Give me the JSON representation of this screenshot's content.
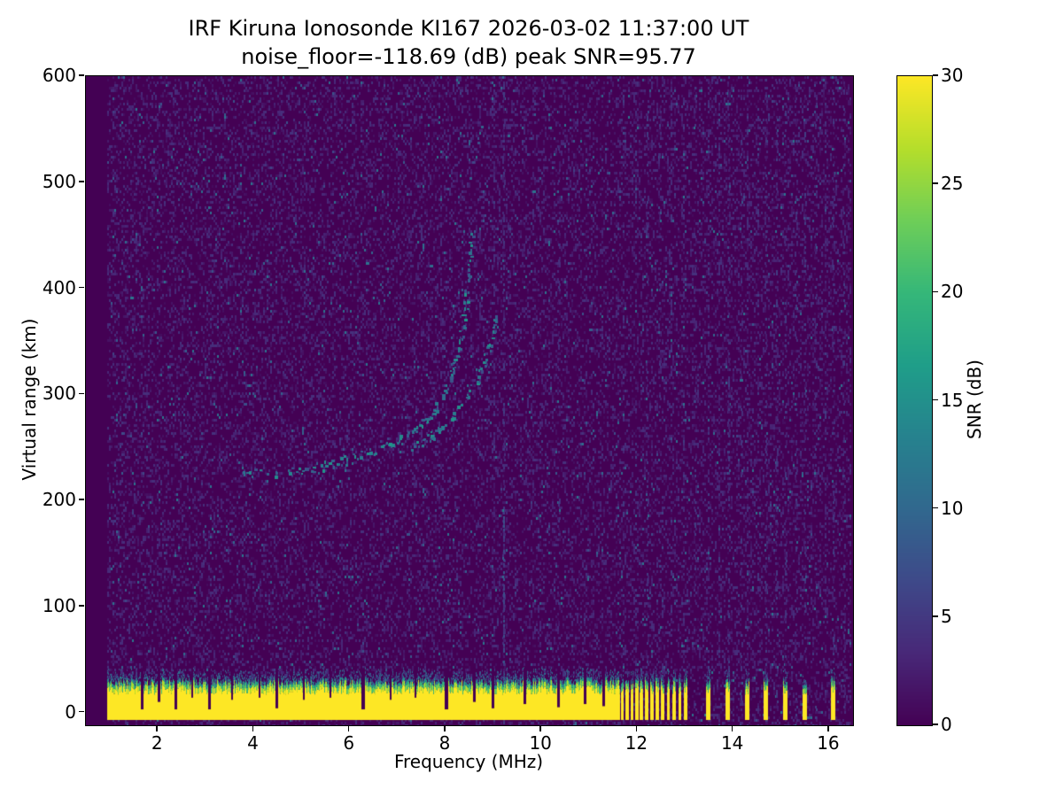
{
  "station": "IRF Kiruna Ionosonde KI167",
  "timestamp_ut": "2026-03-02 11:37:00 UT",
  "noise_floor_db": -118.69,
  "peak_snr_db": 95.77,
  "chart_data": {
    "type": "heatmap",
    "title": "IRF Kiruna Ionosonde KI167 2026-03-02 11:37:00  UT",
    "subtitle": "noise_floor=-118.69 (dB) peak SNR=95.77",
    "xlabel": "Frequency (MHz)",
    "ylabel": "Virtual range (km)",
    "xlim": [
      0.5,
      16.5
    ],
    "ylim": [
      -12,
      600
    ],
    "xticks": [
      2,
      4,
      6,
      8,
      10,
      12,
      14,
      16
    ],
    "yticks": [
      0,
      100,
      200,
      300,
      400,
      500,
      600
    ],
    "grid": false,
    "plot_bg": "#440154",
    "colorbar": {
      "label": "SNR (dB)",
      "min": 0,
      "max": 30,
      "ticks": [
        0,
        5,
        10,
        15,
        20,
        25,
        30
      ],
      "colormap": "viridis",
      "stops": [
        "#440154",
        "#482878",
        "#3e4989",
        "#31688e",
        "#26828e",
        "#1f9e89",
        "#35b779",
        "#6ece58",
        "#b5de2b",
        "#fde725"
      ]
    },
    "features": {
      "data_fmin": 0.95,
      "data_fmax": 16.45,
      "noise_speckle": {
        "p_faint": 0.3,
        "p_bright": 0.018,
        "snr_faint": [
          0.8,
          4.3
        ],
        "snr_bright": [
          5,
          12
        ]
      },
      "clutter_fmin": 0.95,
      "clutter_fmax": 11.62,
      "clutter_bottom_km": -7,
      "clutter_top_km": [
        25,
        34
      ],
      "clutter_stripes": [
        {
          "f": 11.68,
          "w": 0.05
        },
        {
          "f": 11.78,
          "w": 0.05
        },
        {
          "f": 11.88,
          "w": 0.05
        },
        {
          "f": 11.98,
          "w": 0.05
        },
        {
          "f": 12.08,
          "w": 0.05
        },
        {
          "f": 12.19,
          "w": 0.05
        },
        {
          "f": 12.3,
          "w": 0.05
        },
        {
          "f": 12.41,
          "w": 0.05
        },
        {
          "f": 12.52,
          "w": 0.05
        },
        {
          "f": 12.64,
          "w": 0.05
        },
        {
          "f": 12.76,
          "w": 0.05
        },
        {
          "f": 12.88,
          "w": 0.05
        },
        {
          "f": 13.0,
          "w": 0.05
        },
        {
          "f": 13.47,
          "w": 0.08
        },
        {
          "f": 13.88,
          "w": 0.08
        },
        {
          "f": 14.28,
          "w": 0.08
        },
        {
          "f": 14.67,
          "w": 0.08
        },
        {
          "f": 15.08,
          "w": 0.08
        },
        {
          "f": 15.48,
          "w": 0.08
        },
        {
          "f": 16.08,
          "w": 0.08
        }
      ],
      "clutter_notches": [
        {
          "f": 1.68,
          "w": 0.06,
          "depth": 3
        },
        {
          "f": 2.02,
          "w": 0.05,
          "depth": 10
        },
        {
          "f": 2.38,
          "w": 0.06,
          "depth": 3
        },
        {
          "f": 2.72,
          "w": 0.04,
          "depth": 14
        },
        {
          "f": 3.08,
          "w": 0.06,
          "depth": 3
        },
        {
          "f": 3.55,
          "w": 0.04,
          "depth": 12
        },
        {
          "f": 4.12,
          "w": 0.04,
          "depth": 14
        },
        {
          "f": 4.48,
          "w": 0.06,
          "depth": 4
        },
        {
          "f": 5.05,
          "w": 0.04,
          "depth": 12
        },
        {
          "f": 5.6,
          "w": 0.04,
          "depth": 14
        },
        {
          "f": 6.28,
          "w": 0.07,
          "depth": 3
        },
        {
          "f": 6.85,
          "w": 0.04,
          "depth": 12
        },
        {
          "f": 7.38,
          "w": 0.04,
          "depth": 14
        },
        {
          "f": 8.02,
          "w": 0.07,
          "depth": 3
        },
        {
          "f": 8.6,
          "w": 0.05,
          "depth": 10
        },
        {
          "f": 9.0,
          "w": 0.06,
          "depth": 4
        },
        {
          "f": 9.65,
          "w": 0.05,
          "depth": 8
        },
        {
          "f": 10.35,
          "w": 0.06,
          "depth": 5
        },
        {
          "f": 10.9,
          "w": 0.05,
          "depth": 8
        },
        {
          "f": 11.3,
          "w": 0.05,
          "depth": 6
        }
      ],
      "rfi_columns": [
        {
          "f": 9.2,
          "p": 0.45,
          "boost": true
        },
        {
          "f": 9.0,
          "p": 0.18
        },
        {
          "f": 10.35,
          "p": 0.16
        },
        {
          "f": 11.7,
          "p": 0.25
        },
        {
          "f": 11.95,
          "p": 0.22
        },
        {
          "f": 12.2,
          "p": 0.25
        },
        {
          "f": 12.45,
          "p": 0.22
        },
        {
          "f": 12.7,
          "p": 0.25
        },
        {
          "f": 12.95,
          "p": 0.22
        },
        {
          "f": 13.2,
          "p": 0.2
        },
        {
          "f": 13.47,
          "p": 0.28
        },
        {
          "f": 13.7,
          "p": 0.2
        },
        {
          "f": 13.9,
          "p": 0.28
        },
        {
          "f": 14.15,
          "p": 0.2
        },
        {
          "f": 14.28,
          "p": 0.25
        },
        {
          "f": 14.5,
          "p": 0.2
        },
        {
          "f": 14.67,
          "p": 0.25
        },
        {
          "f": 14.9,
          "p": 0.2
        },
        {
          "f": 15.08,
          "p": 0.25
        },
        {
          "f": 15.3,
          "p": 0.2
        },
        {
          "f": 15.48,
          "p": 0.25
        },
        {
          "f": 15.7,
          "p": 0.2
        },
        {
          "f": 15.9,
          "p": 0.2
        },
        {
          "f": 16.08,
          "p": 0.25
        },
        {
          "f": 16.3,
          "p": 0.2
        }
      ],
      "echo_traces": [
        {
          "name": "f-region-echo-main",
          "points": [
            [
              3.75,
              227
            ],
            [
              4.3,
              226
            ],
            [
              4.9,
              229
            ],
            [
              5.5,
              234
            ],
            [
              6.0,
              240
            ],
            [
              6.5,
              247
            ],
            [
              6.95,
              256
            ],
            [
              7.35,
              268
            ],
            [
              7.7,
              283
            ],
            [
              7.95,
              300
            ],
            [
              8.15,
              322
            ],
            [
              8.3,
              350
            ],
            [
              8.4,
              385
            ],
            [
              8.47,
              420
            ],
            [
              8.52,
              455
            ]
          ]
        },
        {
          "name": "f-region-echo-second",
          "points": [
            [
              7.3,
              252
            ],
            [
              7.7,
              262
            ],
            [
              8.05,
              275
            ],
            [
              8.35,
              291
            ],
            [
              8.6,
              310
            ],
            [
              8.8,
              332
            ],
            [
              8.95,
              355
            ],
            [
              9.05,
              378
            ]
          ]
        }
      ],
      "scatter_extra": [
        [
          8.55,
          520
        ],
        [
          8.66,
          538
        ],
        [
          8.74,
          553
        ],
        [
          8.5,
          505
        ],
        [
          9.3,
          545
        ]
      ]
    }
  }
}
